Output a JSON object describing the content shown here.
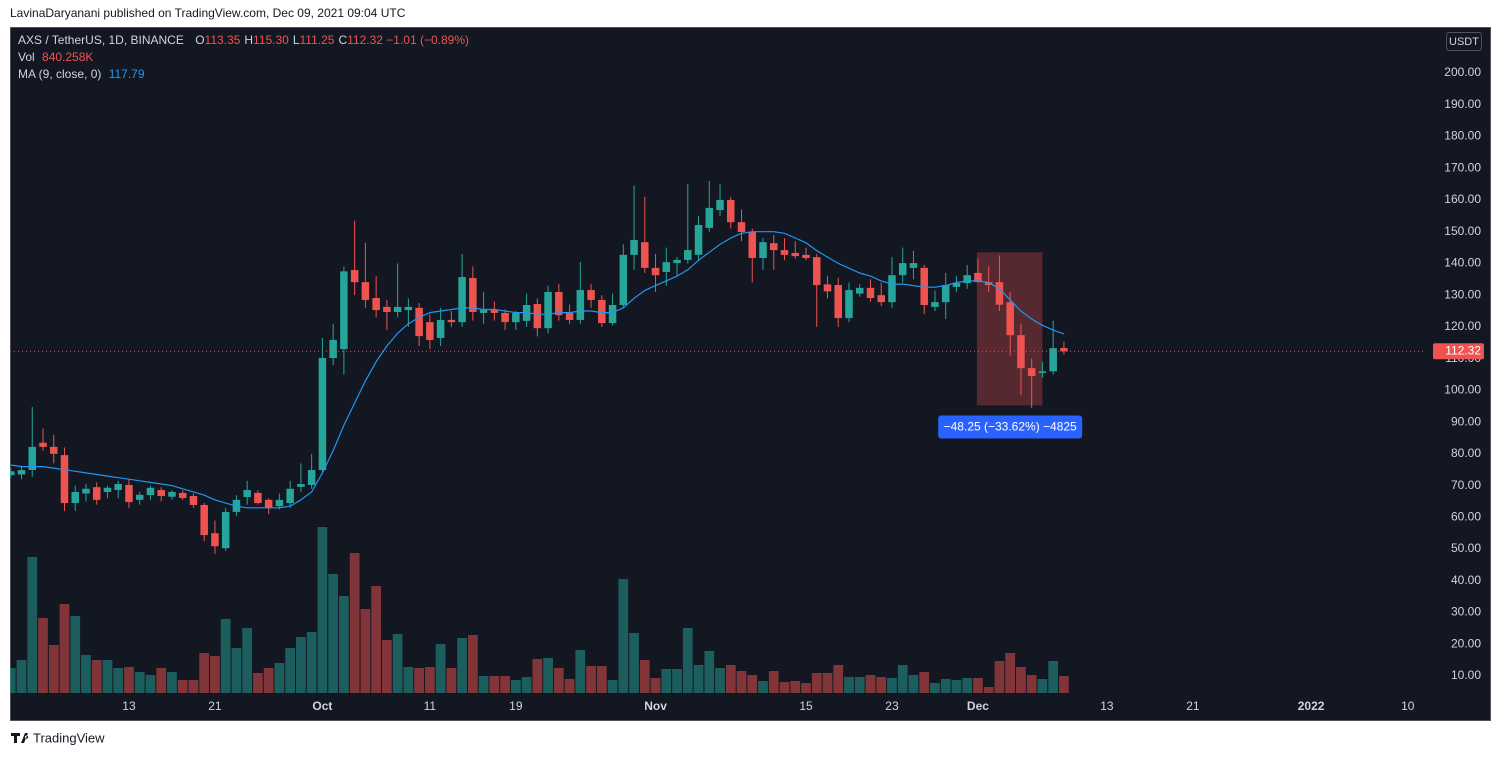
{
  "header": {
    "publisher": "LavinaDaryanani published on TradingView.com, Dec 09, 2021 09:04 UTC"
  },
  "footer": {
    "brand": "TradingView"
  },
  "chart_data": {
    "type": "candlestick",
    "symbol": "AXS / TetherUS, 1D, BINANCE",
    "ohlc_legend": [
      {
        "key": "O",
        "value": "113.35"
      },
      {
        "key": "H",
        "value": "115.30"
      },
      {
        "key": "L",
        "value": "111.25"
      },
      {
        "key": "C",
        "value": "112.32"
      }
    ],
    "change": "−1.01 (−0.89%)",
    "volume_legend": {
      "name": "Vol",
      "value": "840.258K"
    },
    "currency": "USDT",
    "colors": {
      "up": "#26a69a",
      "down": "#ef5350"
    },
    "x": [
      2,
      3,
      4,
      5,
      6,
      7,
      8,
      9,
      10,
      11,
      12,
      13,
      14,
      15,
      16,
      17,
      18,
      19,
      20,
      21,
      22,
      23,
      24,
      25,
      26,
      27,
      28,
      29,
      30,
      31,
      32,
      33,
      34,
      35,
      36,
      37,
      38,
      39,
      40,
      41,
      42,
      43,
      44,
      45,
      46,
      47,
      48,
      49,
      50,
      51,
      52,
      53,
      54,
      55,
      56,
      57,
      58,
      59,
      60,
      61,
      62,
      63,
      64,
      65,
      66,
      67,
      68,
      69,
      70,
      71,
      72,
      73,
      74,
      75,
      76,
      77,
      78,
      79,
      80,
      81,
      82,
      83,
      84,
      85,
      86,
      87,
      88,
      89,
      90,
      91,
      92,
      93,
      94,
      95,
      96,
      97,
      98,
      99,
      100
    ],
    "open": [
      73.3,
      73.5,
      74.9,
      83.5,
      82.2,
      79.6,
      64.5,
      67.5,
      69.5,
      68,
      68.6,
      70.2,
      65.5,
      67,
      68.6,
      66.5,
      67.7,
      66.7,
      63.9,
      55,
      50.3,
      61.7,
      66.4,
      67.7,
      65.5,
      63.5,
      64.5,
      69.6,
      70.2,
      74.9,
      110.2,
      113,
      137.9,
      134.1,
      129.1,
      126.3,
      124.7,
      125.3,
      126,
      121.5,
      116.5,
      122.2,
      121.5,
      135.4,
      124.4,
      125.3,
      124.4,
      121.5,
      121.9,
      127.2,
      119.6,
      131,
      124.4,
      122.2,
      131.6,
      128.5,
      121.2,
      126.9,
      142.7,
      146.7,
      138.6,
      137.3,
      140.1,
      141.1,
      142.7,
      151.2,
      156.8,
      160,
      153,
      149.9,
      141.7,
      146.4,
      144.2,
      143.3,
      142.7,
      142,
      133.4,
      133.2,
      122.8,
      130.5,
      132.3,
      130,
      127.8,
      136.3,
      138.6,
      138.6,
      126.3,
      127.8,
      132.6,
      133.8,
      137,
      134.1,
      134.1,
      127.8,
      117.4,
      107,
      105.5,
      106,
      113.35
    ],
    "high": [
      75.5,
      76,
      94.8,
      88,
      86,
      82,
      70,
      70.5,
      71,
      70,
      71.5,
      72,
      68,
      70,
      69.5,
      68.5,
      68.5,
      67.5,
      64.5,
      59,
      63,
      67,
      71.5,
      68.5,
      66,
      67.5,
      71.5,
      77,
      80,
      116.5,
      121,
      139,
      153.5,
      146.5,
      136,
      128.5,
      140,
      129,
      127.5,
      124,
      126,
      125,
      143,
      139,
      131,
      128,
      125.5,
      125,
      130.5,
      129,
      133,
      133.5,
      127,
      140.5,
      133.5,
      130,
      130.5,
      146,
      164.5,
      161,
      143,
      145,
      142,
      165,
      155,
      166,
      165,
      161,
      157,
      151,
      148,
      149,
      148,
      147,
      145,
      143,
      136,
      135.5,
      134,
      133.5,
      135,
      134,
      142,
      145,
      144,
      139.5,
      131.5,
      137,
      136,
      139.5,
      141.5,
      139,
      142.5,
      131,
      121,
      110,
      109,
      122,
      115.3
    ],
    "low": [
      72.5,
      72,
      72.8,
      81,
      77,
      62,
      62,
      65,
      64,
      66,
      66,
      63,
      64,
      65.5,
      65,
      65.5,
      65.5,
      63,
      52.5,
      48.5,
      49.5,
      60.5,
      64,
      64,
      61,
      62.5,
      63,
      68,
      69,
      73.5,
      108,
      105,
      130,
      126,
      123,
      119,
      123,
      120,
      114,
      113,
      114,
      120,
      120,
      122,
      121,
      122,
      119,
      119,
      120,
      117,
      118,
      122,
      121,
      121,
      126,
      120,
      120.5,
      126,
      138,
      137,
      131,
      133,
      136,
      140,
      141,
      150,
      155,
      151,
      147,
      134,
      138,
      138,
      141,
      141.5,
      141,
      120,
      129,
      120,
      121.5,
      129.5,
      128,
      126.5,
      126,
      134,
      135,
      124,
      125,
      122.5,
      131,
      132,
      134,
      131,
      125,
      111,
      98.5,
      94.5,
      104,
      105,
      111.25
    ],
    "close": [
      74.5,
      74.9,
      82.2,
      82.2,
      80,
      64.5,
      68,
      69,
      65.5,
      69.3,
      70.5,
      64.8,
      67.1,
      69.3,
      66.7,
      68,
      66.1,
      63.9,
      54.4,
      50.9,
      61.7,
      65.5,
      68.6,
      64.5,
      62.9,
      65.5,
      69,
      70.5,
      74.9,
      110.2,
      115.9,
      137.5,
      134.1,
      128.5,
      125.3,
      124.7,
      126.3,
      126.3,
      117.1,
      115.9,
      122.2,
      121.5,
      135.7,
      124.7,
      125.3,
      124.4,
      121.5,
      124.4,
      126.9,
      119.6,
      131,
      123.7,
      122.2,
      131.6,
      128.5,
      121.2,
      126.9,
      142.7,
      147.4,
      138.6,
      136.3,
      140.4,
      141.1,
      144.2,
      152.1,
      157.5,
      160,
      153,
      149.9,
      141.7,
      146.7,
      144.2,
      142.7,
      142.3,
      141.7,
      133.2,
      131.2,
      122.8,
      131.6,
      132.3,
      129.1,
      127.8,
      136.3,
      140.1,
      140.1,
      126.9,
      127.8,
      133.2,
      133.8,
      136.3,
      134.1,
      133.2,
      127,
      117.4,
      107,
      104.5,
      106,
      113.3,
      112.32
    ],
    "volume": [
      1235,
      1630,
      6718,
      3705,
      2371,
      4397,
      3804,
      1877,
      1630,
      1630,
      1235,
      1284,
      1037,
      889,
      1235,
      1037,
      642,
      642,
      1976,
      1828,
      3656,
      2223,
      3211,
      988,
      1235,
      1482,
      2223,
      2766,
      3013,
      8200,
      5879,
      4792,
      6916,
      4150,
      5286,
      2618,
      2915,
      1284,
      1235,
      1284,
      2421,
      1235,
      2717,
      2865,
      840,
      840,
      840,
      642,
      790,
      1680,
      1729,
      1235,
      692,
      2124,
      1334,
      1334,
      642,
      5632,
      2964,
      1630,
      741,
      1186,
      1186,
      3211,
      1383,
      2075,
      1235,
      1383,
      1087,
      889,
      593,
      1087,
      543,
      593,
      494,
      988,
      988,
      1383,
      790,
      790,
      889,
      790,
      741,
      1383,
      889,
      1037,
      494,
      692,
      642,
      741,
      741,
      296,
      1581,
      1976,
      1284,
      889,
      692,
      1581,
      840.258
    ],
    "ma": {
      "name": "MA (9, close, 0)",
      "color": "#2196f3",
      "values": [
        76.5,
        76,
        76,
        76,
        75.5,
        75,
        74.5,
        74,
        73.5,
        73,
        72.5,
        72,
        71.5,
        71,
        70.5,
        70,
        69,
        68,
        67,
        65.5,
        64.5,
        63.5,
        63,
        63,
        63,
        63,
        63.5,
        65.5,
        68,
        74,
        81,
        89,
        96,
        103,
        109,
        114,
        118,
        121,
        123,
        124.5,
        125,
        125.5,
        126,
        126,
        125.5,
        125.5,
        125,
        124.5,
        124.5,
        124,
        124,
        124.5,
        124.5,
        125,
        125,
        124.5,
        124.5,
        126,
        129,
        131.5,
        133,
        134.5,
        136,
        138,
        141,
        143.5,
        146,
        148,
        149.5,
        150,
        150,
        150,
        149.5,
        148,
        146.5,
        144,
        142,
        140,
        138.5,
        137,
        136,
        134.5,
        133.5,
        133.5,
        133,
        132.5,
        132.5,
        133,
        134,
        134.5,
        134.5,
        134,
        132,
        128.5,
        125,
        122.5,
        120.5,
        119,
        117.79
      ]
    },
    "measure": {
      "x": [
        92,
        98
      ],
      "price": [
        143.5,
        95.25
      ],
      "label": "−48.25 (−33.62%) −4825",
      "color": "#2962ff"
    },
    "last_price_line": true,
    "grid": false,
    "xlim": [
      1.93,
      133.6
    ],
    "ylim": [
      4.65,
      213.55
    ],
    "xticks": [
      {
        "value": 13,
        "label": "13"
      },
      {
        "value": 21,
        "label": "21"
      },
      {
        "value": 31,
        "label": "Oct"
      },
      {
        "value": 41,
        "label": "11"
      },
      {
        "value": 49,
        "label": "19"
      },
      {
        "value": 62,
        "label": "Nov"
      },
      {
        "value": 76,
        "label": "15"
      },
      {
        "value": 84,
        "label": "23"
      },
      {
        "value": 92,
        "label": "Dec"
      },
      {
        "value": 104,
        "label": "13"
      },
      {
        "value": 112,
        "label": "21"
      },
      {
        "value": 123,
        "label": "2022"
      },
      {
        "value": 132,
        "label": "10"
      }
    ],
    "yticks": [
      {
        "value": 10,
        "label": "10.00"
      },
      {
        "value": 20,
        "label": "20.00"
      },
      {
        "value": 30,
        "label": "30.00"
      },
      {
        "value": 40,
        "label": "40.00"
      },
      {
        "value": 50,
        "label": "50.00"
      },
      {
        "value": 60,
        "label": "60.00"
      },
      {
        "value": 70,
        "label": "70.00"
      },
      {
        "value": 80,
        "label": "80.00"
      },
      {
        "value": 90,
        "label": "90.00"
      },
      {
        "value": 100,
        "label": "100.00"
      },
      {
        "value": 110,
        "label": "110.00"
      },
      {
        "value": 120,
        "label": "120.00"
      },
      {
        "value": 130,
        "label": "130.00"
      },
      {
        "value": 140,
        "label": "140.00"
      },
      {
        "value": 150,
        "label": "150.00"
      },
      {
        "value": 160,
        "label": "160.00"
      },
      {
        "value": 170,
        "label": "170.00"
      },
      {
        "value": 180,
        "label": "180.00"
      },
      {
        "value": 190,
        "label": "190.00"
      },
      {
        "value": 200,
        "label": "200.00"
      }
    ]
  }
}
